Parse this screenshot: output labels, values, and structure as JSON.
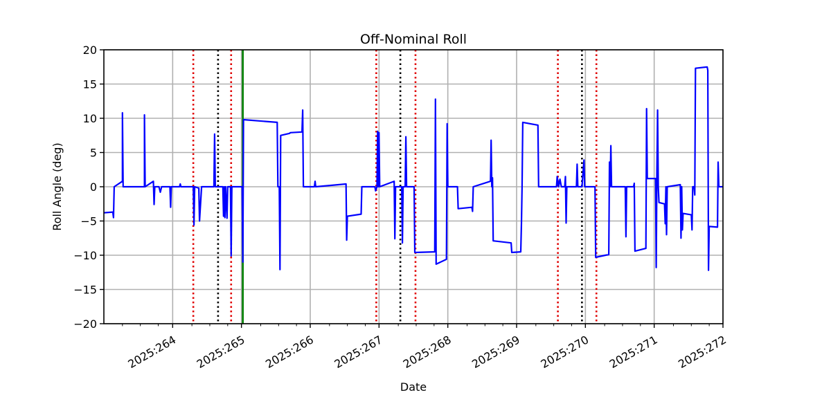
{
  "chart_data": {
    "type": "line",
    "title": "Off-Nominal Roll",
    "xlabel": "Date",
    "ylabel": "Roll Angle (deg)",
    "xlim": [
      263.0,
      272.0
    ],
    "ylim": [
      -20,
      20
    ],
    "grid": true,
    "x_ticks": [
      {
        "value": 264,
        "label": "2025:264"
      },
      {
        "value": 265,
        "label": "2025:265"
      },
      {
        "value": 266,
        "label": "2025:266"
      },
      {
        "value": 267,
        "label": "2025:267"
      },
      {
        "value": 268,
        "label": "2025:268"
      },
      {
        "value": 269,
        "label": "2025:269"
      },
      {
        "value": 270,
        "label": "2025:270"
      },
      {
        "value": 271,
        "label": "2025:271"
      },
      {
        "value": 272,
        "label": "2025:272"
      }
    ],
    "y_ticks": [
      {
        "value": -20,
        "label": "−20"
      },
      {
        "value": -15,
        "label": "−15"
      },
      {
        "value": -10,
        "label": "−10"
      },
      {
        "value": -5,
        "label": "−5"
      },
      {
        "value": 0,
        "label": "0"
      },
      {
        "value": 5,
        "label": "5"
      },
      {
        "value": 10,
        "label": "10"
      },
      {
        "value": 15,
        "label": "15"
      },
      {
        "value": 20,
        "label": "20"
      }
    ],
    "minor_x_ticks": [
      263.27,
      263.53,
      263.79,
      264.28,
      264.54,
      264.8,
      265.28,
      265.54,
      265.8,
      266.28,
      266.54,
      266.8,
      267.28,
      267.54,
      267.8,
      268.28,
      268.54,
      268.8,
      269.28,
      269.54,
      269.8,
      270.28,
      270.54,
      270.8,
      271.28,
      271.54,
      271.8
    ],
    "colors": {
      "series": "#0000ff",
      "red_marker": "#e00000",
      "black_marker": "#000000",
      "green_marker": "#008000",
      "grid": "#b0b0b0"
    },
    "vertical_markers": [
      {
        "x": 264.3,
        "color": "red",
        "style": "dotted"
      },
      {
        "x": 264.66,
        "color": "black",
        "style": "dotted"
      },
      {
        "x": 264.85,
        "color": "red",
        "style": "dotted"
      },
      {
        "x": 265.02,
        "color": "green",
        "style": "solid"
      },
      {
        "x": 266.96,
        "color": "red",
        "style": "dotted"
      },
      {
        "x": 267.31,
        "color": "black",
        "style": "dotted"
      },
      {
        "x": 267.53,
        "color": "red",
        "style": "dotted"
      },
      {
        "x": 269.6,
        "color": "red",
        "style": "dotted"
      },
      {
        "x": 269.95,
        "color": "black",
        "style": "dotted"
      },
      {
        "x": 270.16,
        "color": "red",
        "style": "dotted"
      }
    ],
    "series": [
      {
        "name": "Roll Angle",
        "points": [
          [
            263.0,
            -3.8
          ],
          [
            263.13,
            -3.7
          ],
          [
            263.14,
            -4.5
          ],
          [
            263.15,
            0.0
          ],
          [
            263.27,
            0.8
          ],
          [
            263.27,
            10.8
          ],
          [
            263.28,
            0.0
          ],
          [
            263.59,
            0.0
          ],
          [
            263.59,
            10.5
          ],
          [
            263.6,
            0.0
          ],
          [
            263.72,
            0.8
          ],
          [
            263.73,
            -2.6
          ],
          [
            263.74,
            0.0
          ],
          [
            263.8,
            0.0
          ],
          [
            263.82,
            -0.8
          ],
          [
            263.84,
            0.0
          ],
          [
            263.96,
            0.0
          ],
          [
            263.97,
            -3.0
          ],
          [
            263.98,
            0.0
          ],
          [
            264.1,
            0.0
          ],
          [
            264.11,
            0.4
          ],
          [
            264.12,
            0.0
          ],
          [
            264.3,
            0.0
          ],
          [
            264.31,
            -5.6
          ],
          [
            264.32,
            0.0
          ],
          [
            264.38,
            -0.2
          ],
          [
            264.39,
            -5.0
          ],
          [
            264.42,
            0.0
          ],
          [
            264.56,
            0.0
          ],
          [
            264.6,
            0.0
          ],
          [
            264.61,
            7.7
          ],
          [
            264.62,
            0.0
          ],
          [
            264.73,
            0.0
          ],
          [
            264.74,
            -4.3
          ],
          [
            264.75,
            0.0
          ],
          [
            264.76,
            -4.5
          ],
          [
            264.77,
            0.0
          ],
          [
            264.79,
            -4.6
          ],
          [
            264.8,
            0.0
          ],
          [
            264.84,
            0.0
          ],
          [
            264.85,
            -10.1
          ],
          [
            264.86,
            0.0
          ],
          [
            265.01,
            0.0
          ],
          [
            265.02,
            -11.0
          ],
          [
            265.03,
            9.8
          ],
          [
            265.52,
            9.4
          ],
          [
            265.53,
            0.0
          ],
          [
            265.55,
            0.0
          ],
          [
            265.56,
            -12.1
          ],
          [
            265.57,
            7.5
          ],
          [
            265.7,
            7.8
          ],
          [
            265.71,
            7.9
          ],
          [
            265.88,
            8.0
          ],
          [
            265.89,
            11.2
          ],
          [
            265.9,
            0.0
          ],
          [
            266.06,
            0.0
          ],
          [
            266.07,
            0.8
          ],
          [
            266.08,
            0.0
          ],
          [
            266.52,
            0.4
          ],
          [
            266.53,
            -7.8
          ],
          [
            266.54,
            -4.3
          ],
          [
            266.74,
            -4.0
          ],
          [
            266.75,
            0.0
          ],
          [
            266.94,
            0.0
          ],
          [
            266.95,
            -0.6
          ],
          [
            266.97,
            0.0
          ],
          [
            266.98,
            8.1
          ],
          [
            266.99,
            0.0
          ],
          [
            267.0,
            7.9
          ],
          [
            267.01,
            0.0
          ],
          [
            267.22,
            0.8
          ],
          [
            267.23,
            -7.6
          ],
          [
            267.24,
            0.0
          ],
          [
            267.33,
            0.0
          ],
          [
            267.34,
            -8.2
          ],
          [
            267.35,
            0.0
          ],
          [
            267.38,
            0.0
          ],
          [
            267.39,
            7.3
          ],
          [
            267.4,
            0.0
          ],
          [
            267.51,
            0.0
          ],
          [
            267.52,
            -9.6
          ],
          [
            267.81,
            -9.5
          ],
          [
            267.82,
            12.8
          ],
          [
            267.83,
            -11.3
          ],
          [
            267.98,
            -10.6
          ],
          [
            267.99,
            9.2
          ],
          [
            268.0,
            0.0
          ],
          [
            268.14,
            0.0
          ],
          [
            268.15,
            -3.2
          ],
          [
            268.35,
            -3.0
          ],
          [
            268.36,
            -3.6
          ],
          [
            268.37,
            0.0
          ],
          [
            268.62,
            0.8
          ],
          [
            268.63,
            6.8
          ],
          [
            268.64,
            0.0
          ],
          [
            268.65,
            1.3
          ],
          [
            268.66,
            -7.9
          ],
          [
            268.92,
            -8.2
          ],
          [
            268.93,
            -9.6
          ],
          [
            269.06,
            -9.5
          ],
          [
            269.07,
            -5.3
          ],
          [
            269.08,
            0.0
          ],
          [
            269.09,
            9.4
          ],
          [
            269.31,
            9.0
          ],
          [
            269.32,
            0.0
          ],
          [
            269.58,
            0.0
          ],
          [
            269.59,
            1.5
          ],
          [
            269.61,
            0.0
          ],
          [
            269.63,
            1.1
          ],
          [
            269.65,
            0.0
          ],
          [
            269.7,
            0.0
          ],
          [
            269.71,
            1.5
          ],
          [
            269.72,
            -5.3
          ],
          [
            269.73,
            0.0
          ],
          [
            269.87,
            0.0
          ],
          [
            269.88,
            3.3
          ],
          [
            269.89,
            0.0
          ],
          [
            269.95,
            0.0
          ],
          [
            269.98,
            3.9
          ],
          [
            269.99,
            0.0
          ],
          [
            270.14,
            0.0
          ],
          [
            270.15,
            -10.3
          ],
          [
            270.34,
            -9.9
          ],
          [
            270.35,
            3.6
          ],
          [
            270.36,
            0.0
          ],
          [
            270.37,
            6.0
          ],
          [
            270.38,
            0.0
          ],
          [
            270.58,
            0.0
          ],
          [
            270.59,
            -7.3
          ],
          [
            270.6,
            0.0
          ],
          [
            270.7,
            0.0
          ],
          [
            270.71,
            0.5
          ],
          [
            270.72,
            -9.4
          ],
          [
            270.88,
            -9.0
          ],
          [
            270.89,
            11.4
          ],
          [
            270.9,
            1.2
          ],
          [
            271.02,
            1.2
          ],
          [
            271.03,
            -11.8
          ],
          [
            271.04,
            2.5
          ],
          [
            271.05,
            11.2
          ],
          [
            271.06,
            0.0
          ],
          [
            271.07,
            -2.3
          ],
          [
            271.15,
            -2.5
          ],
          [
            271.16,
            -5.4
          ],
          [
            271.17,
            0.0
          ],
          [
            271.18,
            -7.0
          ],
          [
            271.19,
            0.0
          ],
          [
            271.38,
            0.3
          ],
          [
            271.39,
            -7.5
          ],
          [
            271.4,
            0.0
          ],
          [
            271.41,
            -6.3
          ],
          [
            271.42,
            -3.9
          ],
          [
            271.54,
            -4.1
          ],
          [
            271.55,
            -6.3
          ],
          [
            271.56,
            0.0
          ],
          [
            271.58,
            0.0
          ],
          [
            271.59,
            -1.2
          ],
          [
            271.6,
            17.3
          ],
          [
            271.77,
            17.5
          ],
          [
            271.78,
            17.0
          ],
          [
            271.79,
            -12.2
          ],
          [
            271.8,
            -5.8
          ],
          [
            271.92,
            -5.9
          ],
          [
            271.93,
            3.6
          ],
          [
            271.94,
            0.0
          ],
          [
            272.0,
            0.0
          ]
        ]
      }
    ]
  }
}
